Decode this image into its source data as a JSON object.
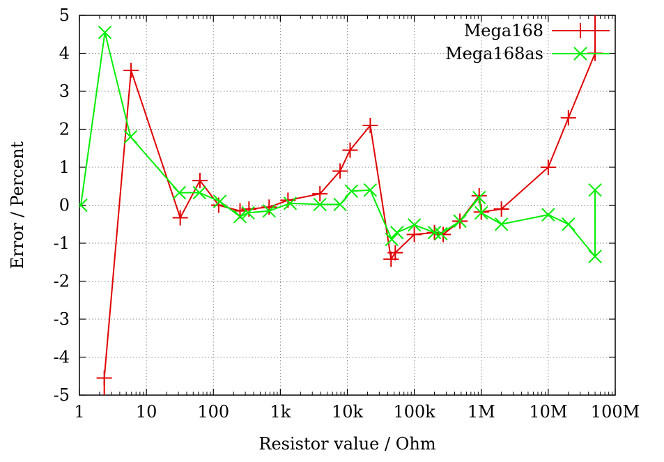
{
  "chart_data": {
    "type": "line",
    "title": "",
    "xlabel": "Resistor value / Ohm",
    "ylabel": "Error / Percent",
    "xscale": "log",
    "xlim": [
      1,
      100000000
    ],
    "ylim": [
      -5,
      5
    ],
    "grid": true,
    "legend_position": "top-right",
    "x_ticks": [
      {
        "value": 1,
        "label": "1"
      },
      {
        "value": 10,
        "label": "10"
      },
      {
        "value": 100,
        "label": "100"
      },
      {
        "value": 1000,
        "label": "1k"
      },
      {
        "value": 10000,
        "label": "10k"
      },
      {
        "value": 100000,
        "label": "100k"
      },
      {
        "value": 1000000,
        "label": "1M"
      },
      {
        "value": 10000000,
        "label": "10M"
      },
      {
        "value": 100000000,
        "label": "100M"
      }
    ],
    "y_ticks": [
      {
        "value": 5,
        "label": "5"
      },
      {
        "value": 4,
        "label": "4"
      },
      {
        "value": 3,
        "label": "3"
      },
      {
        "value": 2,
        "label": "2"
      },
      {
        "value": 1,
        "label": "1"
      },
      {
        "value": 0,
        "label": "0"
      },
      {
        "value": -1,
        "label": "-1"
      },
      {
        "value": -2,
        "label": "-2"
      },
      {
        "value": -3,
        "label": "-3"
      },
      {
        "value": -4,
        "label": "-4"
      },
      {
        "value": -5,
        "label": "-5"
      }
    ],
    "series": [
      {
        "name": "Mega168",
        "color": "#e00000",
        "marker": "plus",
        "points": [
          [
            2.35,
            -6.0
          ],
          [
            2.35,
            -4.55
          ],
          [
            5.9,
            3.55
          ],
          [
            32,
            -0.33
          ],
          [
            63,
            0.65
          ],
          [
            120,
            0.0
          ],
          [
            250,
            -0.15
          ],
          [
            340,
            -0.1
          ],
          [
            680,
            -0.05
          ],
          [
            1300,
            0.13
          ],
          [
            3900,
            0.3
          ],
          [
            7800,
            0.9
          ],
          [
            11000,
            1.45
          ],
          [
            22000,
            2.1
          ],
          [
            45000,
            -1.42
          ],
          [
            52000,
            -1.25
          ],
          [
            100000,
            -0.77
          ],
          [
            200000,
            -0.72
          ],
          [
            270000,
            -0.77
          ],
          [
            480000,
            -0.42
          ],
          [
            930000,
            0.25
          ],
          [
            1000000,
            -0.18
          ],
          [
            2000000,
            -0.1
          ],
          [
            10000000,
            1.0
          ],
          [
            20000000,
            2.3
          ],
          [
            50000000,
            4.0
          ],
          [
            50000000,
            6.0
          ]
        ]
      },
      {
        "name": "Mega168as",
        "color": "#00ee00",
        "marker": "cross",
        "points": [
          [
            1.05,
            0.0
          ],
          [
            2.4,
            4.55
          ],
          [
            5.8,
            1.8
          ],
          [
            31,
            0.33
          ],
          [
            62,
            0.33
          ],
          [
            125,
            0.1
          ],
          [
            250,
            -0.3
          ],
          [
            330,
            -0.2
          ],
          [
            680,
            -0.15
          ],
          [
            1400,
            0.05
          ],
          [
            3900,
            0.02
          ],
          [
            7800,
            0.02
          ],
          [
            11500,
            0.37
          ],
          [
            22000,
            0.4
          ],
          [
            46000,
            -0.9
          ],
          [
            55000,
            -0.72
          ],
          [
            100000,
            -0.52
          ],
          [
            200000,
            -0.72
          ],
          [
            250000,
            -0.75
          ],
          [
            480000,
            -0.42
          ],
          [
            930000,
            0.2
          ],
          [
            1000000,
            -0.2
          ],
          [
            2000000,
            -0.5
          ],
          [
            10000000,
            -0.25
          ],
          [
            20000000,
            -0.5
          ],
          [
            50000000,
            -1.35
          ],
          [
            50000000,
            0.4
          ]
        ]
      }
    ]
  }
}
